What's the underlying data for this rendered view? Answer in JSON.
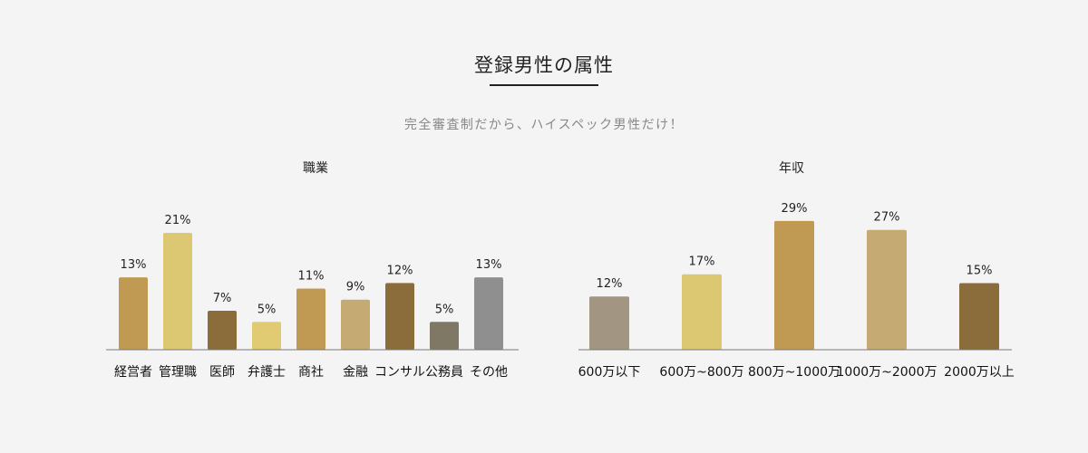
{
  "page": {
    "title": "登録男性の属性",
    "subtitle": "完全審査制だから、ハイスペック男性だけ！"
  },
  "chart_data": [
    {
      "type": "bar",
      "title": "職業",
      "categories": [
        "経営者",
        "管理職",
        "医師",
        "弁護士",
        "商社",
        "金融",
        "コンサル",
        "公務員",
        "その他"
      ],
      "values": [
        13,
        21,
        7,
        5,
        11,
        9,
        12,
        5,
        13
      ],
      "value_labels": [
        "13%",
        "21%",
        "7%",
        "5%",
        "11%",
        "9%",
        "12%",
        "5%",
        "13%"
      ],
      "colors": [
        "#c09a52",
        "#dcc872",
        "#8b6d3b",
        "#e0cb73",
        "#c09a52",
        "#c5aa74",
        "#8b6d3b",
        "#7f7865",
        "#8f8f8f"
      ],
      "unit": "%",
      "xlabel": "",
      "ylabel": "",
      "grid": false
    },
    {
      "type": "bar",
      "title": "年収",
      "categories": [
        "600万以下",
        "600万~800万",
        "800万~1000万",
        "1000万~2000万",
        "2000万以上"
      ],
      "values": [
        12,
        17,
        29,
        27,
        15
      ],
      "value_labels": [
        "12%",
        "17%",
        "29%",
        "27%",
        "15%"
      ],
      "colors": [
        "#a29682",
        "#dcc872",
        "#c09a52",
        "#c5aa74",
        "#8b6d3b"
      ],
      "unit": "%",
      "xlabel": "",
      "ylabel": "",
      "grid": false
    }
  ]
}
